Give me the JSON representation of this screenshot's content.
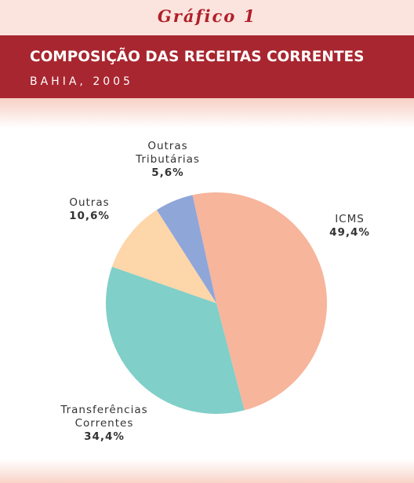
{
  "chart_data": {
    "type": "pie",
    "label": "Gráfico 1",
    "title": "COMPOSIÇÃO DAS RECEITAS CORRENTES",
    "subtitle": "BAHIA, 2005",
    "categories": [
      "ICMS",
      "Transferências Correntes",
      "Outras",
      "Outras Tributárias"
    ],
    "values": [
      49.4,
      34.4,
      10.6,
      5.6
    ],
    "value_labels": [
      "49,4%",
      "34,4%",
      "10,6%",
      "5,6%"
    ],
    "colors": [
      "#f7b59c",
      "#80cfc8",
      "#fdd6aa",
      "#8fa6d9"
    ]
  }
}
